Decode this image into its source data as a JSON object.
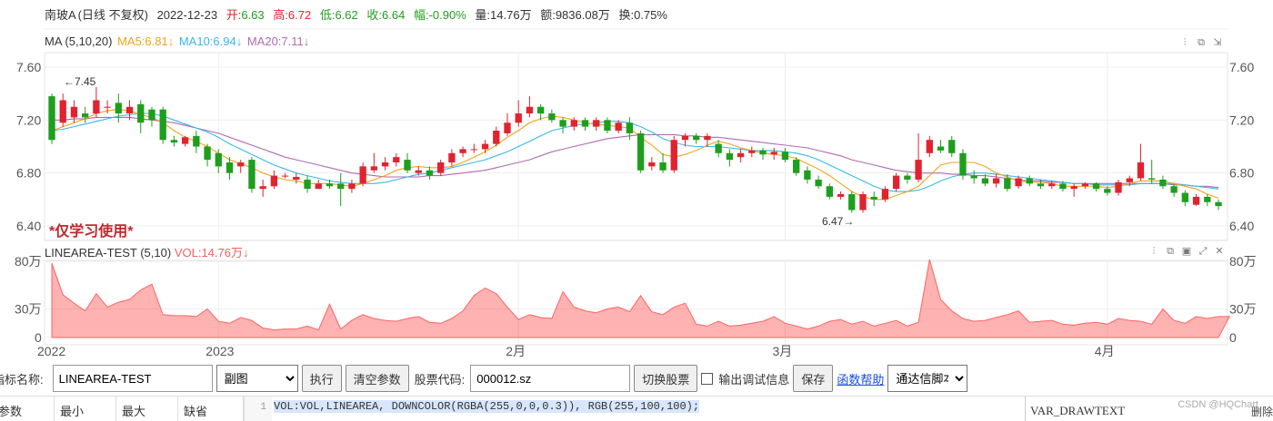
{
  "header": {
    "name": "南玻A",
    "period": "(日线 不复权)",
    "date": "2022-12-23",
    "open_label": "开:",
    "open": "6.63",
    "high_label": "高:",
    "high": "6.72",
    "low_label": "低:",
    "low": "6.62",
    "close_label": "收:",
    "close": "6.64",
    "change_label": "幅:",
    "change": "-0.90%",
    "volume_label": "量:",
    "volume": "14.76万",
    "amount_label": "额:",
    "amount": "9836.08万",
    "turnover_label": "换:",
    "turnover": "0.75%"
  },
  "ma": {
    "name": "MA (5,10,20)",
    "ma5": "MA5:6.81↓",
    "ma10": "MA10:6.94↓",
    "ma20": "MA20:7.11↓",
    "colors": {
      "ma5": "#f2a31b",
      "ma10": "#3bb7e8",
      "ma20": "#b06bb0"
    }
  },
  "indicator": {
    "name": "LINEAREA-TEST (5,10)",
    "vol": "VOL:14.76万↓"
  },
  "watermark": "*仅学习使用*",
  "annotations": {
    "high": "←7.45",
    "low": "6.47→"
  },
  "price_axis": [
    "7.60",
    "7.20",
    "6.80",
    "6.40"
  ],
  "volume_axis": [
    "80万",
    "30万",
    "0"
  ],
  "date_axis": [
    "2022",
    "2023",
    "2月",
    "3月",
    "4月"
  ],
  "icons": [
    "settings-icon",
    "copy-icon",
    "export-icon",
    "close-icon",
    "expand-icon"
  ],
  "controls": {
    "indicator_name_label": "指标名称:",
    "indicator_name_value": "LINEAREA-TEST",
    "window_select": "副图",
    "execute_button": "执行",
    "clear_button": "清空参数",
    "stock_code_label": "股票代码:",
    "stock_code_value": "000012.sz",
    "switch_button": "切换股票",
    "debug_label": "输出调试信息",
    "save_button": "保存",
    "help_link": "函数帮助",
    "script_select": "通达信脚本"
  },
  "params_table": {
    "headers": [
      "参数",
      "最小",
      "最大",
      "缺省"
    ]
  },
  "code": {
    "line_no": "1",
    "line": "VOL:VOL,LINEAREA, DOWNCOLOR(RGBA(255,0,0,0.3)), RGB(255,100,100);"
  },
  "right_panel": {
    "title": "VAR_DRAWTEXT",
    "delete": "删除"
  },
  "credit": "CSDN @HQChart",
  "chart_data": {
    "type": "candlestick",
    "x_start": "2022-12-23",
    "ylim": [
      6.4,
      7.6
    ],
    "candles": [
      [
        7.38,
        7.05,
        7.4,
        7.02
      ],
      [
        7.18,
        7.35,
        7.4,
        7.15
      ],
      [
        7.22,
        7.3,
        7.35,
        7.18
      ],
      [
        7.25,
        7.22,
        7.3,
        7.18
      ],
      [
        7.25,
        7.35,
        7.45,
        7.22
      ],
      [
        7.3,
        7.3,
        7.35,
        7.25
      ],
      [
        7.33,
        7.25,
        7.4,
        7.18
      ],
      [
        7.25,
        7.3,
        7.35,
        7.2
      ],
      [
        7.32,
        7.18,
        7.35,
        7.1
      ],
      [
        7.28,
        7.2,
        7.3,
        7.15
      ],
      [
        7.28,
        7.05,
        7.3,
        7.02
      ],
      [
        7.05,
        7.03,
        7.08,
        7.0
      ],
      [
        7.02,
        7.07,
        7.08,
        7.0
      ],
      [
        7.08,
        7.0,
        7.12,
        6.95
      ],
      [
        7.0,
        6.9,
        7.02,
        6.85
      ],
      [
        6.95,
        6.85,
        6.98,
        6.8
      ],
      [
        6.88,
        6.8,
        6.92,
        6.75
      ],
      [
        6.85,
        6.88,
        6.9,
        6.8
      ],
      [
        6.9,
        6.68,
        6.92,
        6.65
      ],
      [
        6.68,
        6.7,
        6.75,
        6.62
      ],
      [
        6.7,
        6.78,
        6.82,
        6.68
      ],
      [
        6.78,
        6.78,
        6.8,
        6.76
      ],
      [
        6.75,
        6.77,
        6.8,
        6.72
      ],
      [
        6.75,
        6.68,
        6.78,
        6.65
      ],
      [
        6.68,
        6.72,
        6.75,
        6.68
      ],
      [
        6.72,
        6.7,
        6.75,
        6.68
      ],
      [
        6.72,
        6.68,
        6.8,
        6.55
      ],
      [
        6.68,
        6.72,
        6.75,
        6.65
      ],
      [
        6.72,
        6.85,
        6.88,
        6.7
      ],
      [
        6.82,
        6.85,
        6.95,
        6.8
      ],
      [
        6.85,
        6.88,
        6.92,
        6.82
      ],
      [
        6.88,
        6.92,
        6.95,
        6.85
      ],
      [
        6.9,
        6.82,
        6.95,
        6.8
      ],
      [
        6.8,
        6.82,
        6.85,
        6.78
      ],
      [
        6.82,
        6.78,
        6.85,
        6.75
      ],
      [
        6.8,
        6.88,
        6.9,
        6.78
      ],
      [
        6.88,
        6.95,
        6.98,
        6.85
      ],
      [
        6.95,
        6.98,
        7.0,
        6.92
      ],
      [
        6.98,
        6.98,
        7.02,
        6.95
      ],
      [
        6.98,
        7.02,
        7.05,
        6.95
      ],
      [
        7.02,
        7.12,
        7.15,
        7.0
      ],
      [
        7.1,
        7.18,
        7.25,
        7.08
      ],
      [
        7.18,
        7.25,
        7.35,
        7.15
      ],
      [
        7.25,
        7.3,
        7.38,
        7.22
      ],
      [
        7.3,
        7.25,
        7.32,
        7.2
      ],
      [
        7.25,
        7.2,
        7.28,
        7.18
      ],
      [
        7.2,
        7.15,
        7.22,
        7.1
      ],
      [
        7.15,
        7.2,
        7.22,
        7.12
      ],
      [
        7.2,
        7.15,
        7.22,
        7.12
      ],
      [
        7.15,
        7.2,
        7.22,
        7.12
      ],
      [
        7.2,
        7.12,
        7.22,
        7.1
      ],
      [
        7.12,
        7.18,
        7.2,
        7.1
      ],
      [
        7.18,
        7.1,
        7.22,
        7.05
      ],
      [
        7.1,
        6.82,
        7.12,
        6.8
      ],
      [
        6.85,
        6.88,
        6.92,
        6.82
      ],
      [
        6.88,
        6.82,
        6.95,
        6.8
      ],
      [
        6.82,
        7.05,
        7.08,
        6.8
      ],
      [
        7.05,
        7.08,
        7.1,
        7.0
      ],
      [
        7.08,
        7.05,
        7.1,
        7.02
      ],
      [
        7.05,
        7.08,
        7.1,
        7.0
      ],
      [
        7.02,
        6.95,
        7.05,
        6.92
      ],
      [
        6.95,
        6.9,
        6.98,
        6.85
      ],
      [
        6.92,
        6.95,
        6.98,
        6.88
      ],
      [
        6.95,
        6.97,
        7.0,
        6.92
      ],
      [
        6.97,
        6.94,
        6.99,
        6.9
      ],
      [
        6.94,
        6.96,
        6.99,
        6.9
      ],
      [
        6.96,
        6.9,
        6.99,
        6.88
      ],
      [
        6.9,
        6.8,
        6.92,
        6.78
      ],
      [
        6.82,
        6.75,
        6.85,
        6.72
      ],
      [
        6.75,
        6.7,
        6.78,
        6.68
      ],
      [
        6.7,
        6.62,
        6.72,
        6.6
      ],
      [
        6.62,
        6.64,
        6.66,
        6.6
      ],
      [
        6.64,
        6.52,
        6.66,
        6.5
      ],
      [
        6.52,
        6.64,
        6.66,
        6.5
      ],
      [
        6.62,
        6.6,
        6.66,
        6.55
      ],
      [
        6.6,
        6.68,
        6.7,
        6.58
      ],
      [
        6.68,
        6.78,
        6.8,
        6.66
      ],
      [
        6.78,
        6.75,
        6.8,
        6.72
      ],
      [
        6.75,
        6.9,
        7.1,
        6.73
      ],
      [
        6.95,
        7.05,
        7.08,
        6.92
      ],
      [
        7.0,
        6.97,
        7.05,
        6.95
      ],
      [
        7.05,
        6.95,
        7.08,
        6.92
      ],
      [
        6.95,
        6.78,
        6.98,
        6.75
      ],
      [
        6.78,
        6.76,
        6.82,
        6.72
      ],
      [
        6.76,
        6.72,
        6.79,
        6.7
      ],
      [
        6.72,
        6.76,
        6.79,
        6.69
      ],
      [
        6.76,
        6.68,
        6.79,
        6.66
      ],
      [
        6.7,
        6.76,
        6.78,
        6.68
      ],
      [
        6.76,
        6.72,
        6.78,
        6.7
      ],
      [
        6.72,
        6.7,
        6.75,
        6.68
      ],
      [
        6.7,
        6.72,
        6.74,
        6.68
      ],
      [
        6.72,
        6.68,
        6.74,
        6.66
      ],
      [
        6.68,
        6.7,
        6.72,
        6.62
      ],
      [
        6.7,
        6.72,
        6.73,
        6.68
      ],
      [
        6.72,
        6.68,
        6.73,
        6.66
      ],
      [
        6.68,
        6.65,
        6.7,
        6.63
      ],
      [
        6.65,
        6.73,
        6.75,
        6.63
      ],
      [
        6.73,
        6.76,
        6.78,
        6.7
      ],
      [
        6.76,
        6.88,
        7.02,
        6.74
      ],
      [
        6.76,
        6.75,
        6.9,
        6.72
      ],
      [
        6.75,
        6.7,
        6.78,
        6.68
      ],
      [
        6.7,
        6.65,
        6.72,
        6.62
      ],
      [
        6.65,
        6.58,
        6.67,
        6.55
      ],
      [
        6.56,
        6.62,
        6.64,
        6.55
      ],
      [
        6.62,
        6.58,
        6.64,
        6.55
      ],
      [
        6.58,
        6.55,
        6.6,
        6.52
      ]
    ],
    "ma5": [
      7.12,
      7.15,
      7.18,
      7.21,
      7.25,
      7.27,
      7.28,
      7.27,
      7.24,
      7.22,
      7.18,
      7.12,
      7.07,
      7.04,
      7.0,
      6.95,
      6.9,
      6.87,
      6.84,
      6.8,
      6.77,
      6.75,
      6.74,
      6.72,
      6.72,
      6.72,
      6.71,
      6.7,
      6.72,
      6.75,
      6.78,
      6.82,
      6.84,
      6.85,
      6.84,
      6.84,
      6.85,
      6.88,
      6.92,
      6.96,
      7.01,
      7.07,
      7.12,
      7.18,
      7.21,
      7.23,
      7.22,
      7.2,
      7.18,
      7.17,
      7.16,
      7.15,
      7.14,
      7.07,
      7.01,
      6.94,
      6.92,
      6.94,
      6.97,
      7.01,
      7.04,
      7.02,
      6.99,
      6.97,
      6.95,
      6.94,
      6.93,
      6.91,
      6.87,
      6.83,
      6.78,
      6.72,
      6.66,
      6.62,
      6.6,
      6.6,
      6.63,
      6.66,
      6.7,
      6.78,
      6.86,
      6.88,
      6.88,
      6.88,
      6.85,
      6.8,
      6.77,
      6.74,
      6.73,
      6.73,
      6.72,
      6.7,
      6.7,
      6.7,
      6.7,
      6.69,
      6.7,
      6.72,
      6.74,
      6.74,
      6.74,
      6.72,
      6.7,
      6.68,
      6.64,
      6.61
    ],
    "ma10": [
      7.12,
      7.13,
      7.15,
      7.17,
      7.19,
      7.21,
      7.23,
      7.24,
      7.25,
      7.25,
      7.23,
      7.2,
      7.17,
      7.14,
      7.11,
      7.07,
      7.02,
      6.98,
      6.94,
      6.9,
      6.86,
      6.83,
      6.8,
      6.78,
      6.76,
      6.74,
      6.73,
      6.72,
      6.72,
      6.72,
      6.73,
      6.75,
      6.77,
      6.79,
      6.8,
      6.82,
      6.84,
      6.86,
      6.88,
      6.9,
      6.93,
      6.96,
      7.0,
      7.04,
      7.08,
      7.12,
      7.14,
      7.16,
      7.17,
      7.18,
      7.19,
      7.19,
      7.18,
      7.15,
      7.11,
      7.06,
      7.03,
      7.01,
      7.0,
      7.0,
      7.0,
      6.99,
      6.98,
      6.97,
      6.97,
      6.97,
      6.96,
      6.95,
      6.93,
      6.9,
      6.86,
      6.82,
      6.78,
      6.74,
      6.7,
      6.67,
      6.66,
      6.66,
      6.67,
      6.7,
      6.74,
      6.77,
      6.79,
      6.8,
      6.8,
      6.79,
      6.78,
      6.77,
      6.76,
      6.75,
      6.74,
      6.73,
      6.72,
      6.72,
      6.71,
      6.71,
      6.71,
      6.71,
      6.72,
      6.72,
      6.72,
      6.72,
      6.71,
      6.7,
      6.69,
      6.68
    ],
    "ma20": [
      7.2,
      7.2,
      7.21,
      7.21,
      7.22,
      7.22,
      7.22,
      7.22,
      7.21,
      7.2,
      7.19,
      7.18,
      7.16,
      7.14,
      7.12,
      7.1,
      7.07,
      7.04,
      7.01,
      6.98,
      6.95,
      6.92,
      6.9,
      6.88,
      6.86,
      6.84,
      6.82,
      6.8,
      6.79,
      6.78,
      6.77,
      6.77,
      6.77,
      6.77,
      6.78,
      6.78,
      6.79,
      6.8,
      6.81,
      6.82,
      6.84,
      6.86,
      6.88,
      6.9,
      6.93,
      6.96,
      6.98,
      7.0,
      7.02,
      7.04,
      7.06,
      7.07,
      7.08,
      7.09,
      7.09,
      7.09,
      7.09,
      7.08,
      7.08,
      7.07,
      7.07,
      7.06,
      7.05,
      7.04,
      7.03,
      7.02,
      7.01,
      7.0,
      6.99,
      6.97,
      6.95,
      6.93,
      6.9,
      6.88,
      6.86,
      6.84,
      6.82,
      6.81,
      6.8,
      6.8,
      6.8,
      6.79,
      6.79,
      6.78,
      6.78,
      6.77,
      6.76,
      6.75,
      6.74,
      6.74,
      6.73,
      6.73,
      6.72,
      6.72,
      6.72,
      6.72,
      6.72,
      6.72,
      6.72,
      6.72,
      6.72,
      6.71,
      6.71,
      6.7,
      6.7,
      6.69
    ],
    "volume_ylim": [
      0,
      80
    ],
    "volume": [
      78,
      45,
      36,
      28,
      46,
      32,
      37,
      40,
      50,
      56,
      24,
      23,
      23,
      22,
      30,
      17,
      15,
      21,
      18,
      10,
      8,
      9,
      9,
      12,
      8,
      35,
      9,
      18,
      24,
      20,
      18,
      17,
      20,
      22,
      16,
      15,
      20,
      28,
      44,
      52,
      46,
      32,
      19,
      24,
      21,
      20,
      48,
      32,
      28,
      26,
      30,
      32,
      27,
      44,
      27,
      24,
      32,
      36,
      14,
      12,
      17,
      12,
      13,
      15,
      17,
      22,
      15,
      12,
      9,
      12,
      17,
      19,
      14,
      17,
      12,
      15,
      18,
      12,
      16,
      82,
      40,
      28,
      20,
      17,
      18,
      21,
      24,
      28,
      16,
      17,
      18,
      14,
      13,
      15,
      16,
      14,
      20,
      18,
      17,
      14,
      30,
      18,
      15,
      22,
      20,
      22,
      22
    ]
  }
}
